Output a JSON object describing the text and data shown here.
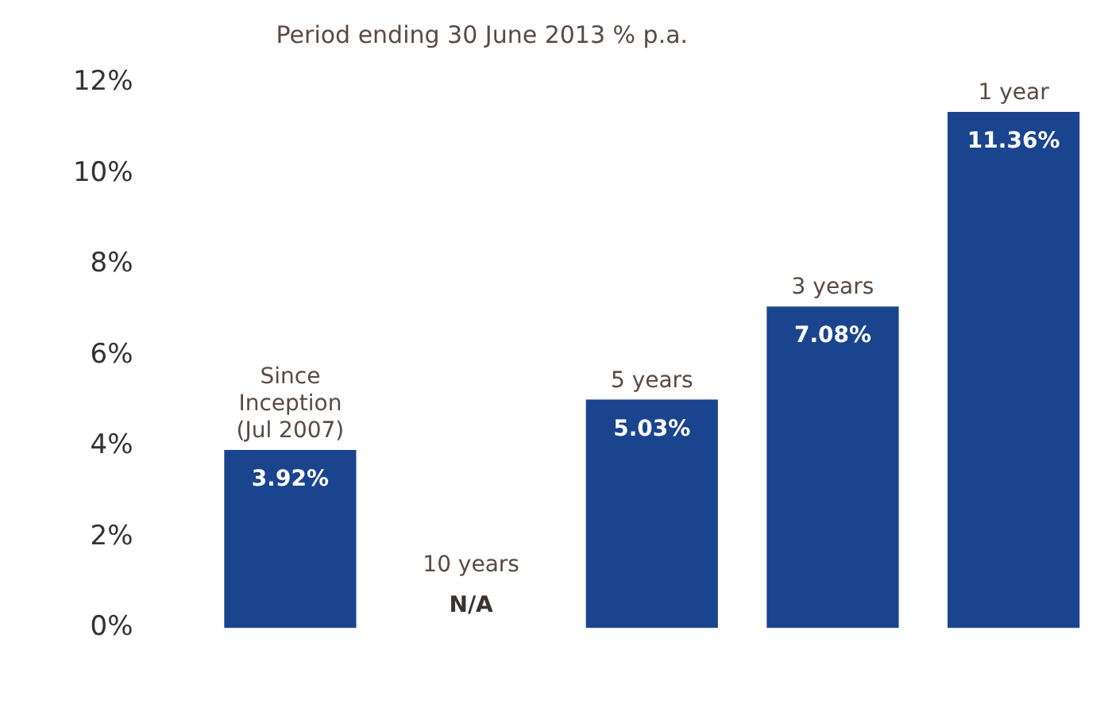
{
  "chart_data": {
    "type": "bar",
    "title": "Period ending 30 June 2013 % p.a.",
    "categories": [
      "Since Inception (Jul 2007)",
      "10 years",
      "5 years",
      "3 years",
      "1 year"
    ],
    "values": [
      3.92,
      null,
      5.03,
      7.08,
      11.36
    ],
    "value_labels": [
      "3.92%",
      "N/A",
      "5.03%",
      "7.08%",
      "11.36%"
    ],
    "color": "#1b448e",
    "ylim": [
      0,
      12
    ],
    "yticks": [
      {
        "value": 0,
        "label": "0%"
      },
      {
        "value": 2,
        "label": "2%"
      },
      {
        "value": 4,
        "label": "4%"
      },
      {
        "value": 6,
        "label": "6%"
      },
      {
        "value": 8,
        "label": "8%"
      },
      {
        "value": 10,
        "label": "10%"
      },
      {
        "value": 12,
        "label": "12%"
      }
    ],
    "grid": false,
    "legend": false
  }
}
